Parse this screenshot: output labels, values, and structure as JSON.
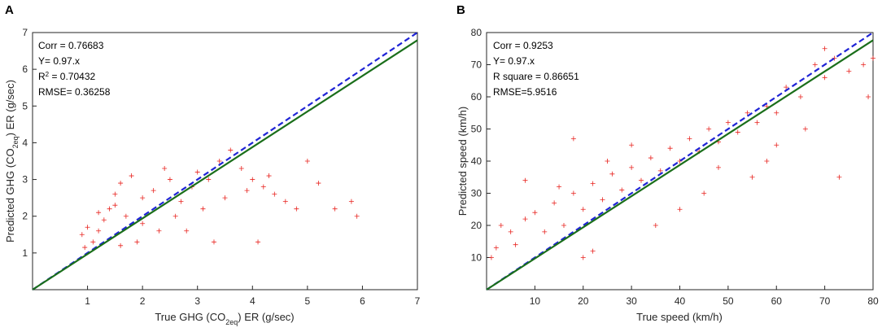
{
  "chart_data": [
    {
      "type": "scatter",
      "panel_label": "A",
      "xlabel": {
        "pre": "True GHG (CO",
        "sub": "2eq",
        "post": ") ER (g/sec)"
      },
      "ylabel": {
        "pre": "Predicted GHG (CO",
        "sub": "2eq",
        "post": ") ER (g/sec)"
      },
      "xlim": [
        0,
        7
      ],
      "ylim": [
        0,
        7
      ],
      "xticks": [
        1,
        2,
        3,
        4,
        5,
        6,
        7
      ],
      "yticks": [
        1,
        2,
        3,
        4,
        5,
        6,
        7
      ],
      "annotations": {
        "corr": "Corr = 0.76683",
        "fit": "Y= 0.97.x",
        "r2_pre": "R",
        "r2_sup": "2",
        "r2_post": " = 0.70432",
        "rmse": "RMSE= 0.36258"
      },
      "lines": [
        {
          "name": "identity",
          "style": "dashed",
          "color": "#1f24d6",
          "slope": 1.0
        },
        {
          "name": "fit",
          "style": "solid",
          "color": "#1a6e1a",
          "slope": 0.97
        }
      ],
      "scatter_color": "#e8231f",
      "points": [
        [
          0.95,
          1.15
        ],
        [
          1.1,
          1.3
        ],
        [
          1.2,
          1.6
        ],
        [
          1.3,
          1.9
        ],
        [
          1.4,
          2.2
        ],
        [
          1.5,
          2.6
        ],
        [
          1.6,
          2.9
        ],
        [
          1.8,
          3.1
        ],
        [
          2.0,
          2.5
        ],
        [
          2.2,
          2.7
        ],
        [
          2.4,
          3.3
        ],
        [
          2.5,
          3.0
        ],
        [
          2.7,
          2.4
        ],
        [
          2.9,
          2.8
        ],
        [
          3.0,
          3.2
        ],
        [
          3.2,
          3.0
        ],
        [
          3.4,
          3.5
        ],
        [
          3.6,
          3.8
        ],
        [
          3.8,
          3.3
        ],
        [
          4.0,
          3.0
        ],
        [
          4.2,
          2.8
        ],
        [
          4.4,
          2.6
        ],
        [
          4.6,
          2.4
        ],
        [
          4.8,
          2.2
        ],
        [
          5.0,
          3.5
        ],
        [
          5.2,
          2.9
        ],
        [
          5.5,
          2.2
        ],
        [
          5.8,
          2.4
        ],
        [
          5.9,
          2.0
        ],
        [
          4.1,
          1.3
        ],
        [
          3.3,
          1.3
        ],
        [
          2.8,
          1.6
        ],
        [
          2.3,
          1.6
        ],
        [
          1.9,
          1.3
        ],
        [
          1.6,
          1.2
        ],
        [
          1.0,
          1.7
        ],
        [
          0.9,
          1.5
        ],
        [
          1.2,
          2.1
        ],
        [
          1.5,
          2.3
        ],
        [
          1.7,
          2.0
        ],
        [
          2.0,
          1.8
        ],
        [
          2.6,
          2.0
        ],
        [
          3.1,
          2.2
        ],
        [
          3.5,
          2.5
        ],
        [
          3.9,
          2.7
        ],
        [
          4.3,
          3.1
        ]
      ]
    },
    {
      "type": "scatter",
      "panel_label": "B",
      "xlabel": "True speed (km/h)",
      "ylabel": "Predicted speed (km/h)",
      "xlim": [
        0,
        80
      ],
      "ylim": [
        0,
        80
      ],
      "xticks": [
        10,
        20,
        30,
        40,
        50,
        60,
        70,
        80
      ],
      "yticks": [
        10,
        20,
        30,
        40,
        50,
        60,
        70,
        80
      ],
      "annotations": {
        "corr": "Corr = 0.9253",
        "fit": "Y= 0.97.x",
        "r2": "R square = 0.86651",
        "rmse": "RMSE=5.9516"
      },
      "lines": [
        {
          "name": "identity",
          "style": "dashed",
          "color": "#1f24d6",
          "slope": 1.0
        },
        {
          "name": "fit",
          "style": "solid",
          "color": "#1a6e1a",
          "slope": 0.97
        }
      ],
      "scatter_color": "#e8231f",
      "points": [
        [
          1,
          10
        ],
        [
          2,
          13
        ],
        [
          3,
          20
        ],
        [
          5,
          18
        ],
        [
          6,
          14
        ],
        [
          8,
          22
        ],
        [
          10,
          24
        ],
        [
          12,
          18
        ],
        [
          14,
          27
        ],
        [
          16,
          20
        ],
        [
          18,
          30
        ],
        [
          20,
          25
        ],
        [
          22,
          33
        ],
        [
          24,
          28
        ],
        [
          26,
          36
        ],
        [
          28,
          31
        ],
        [
          30,
          38
        ],
        [
          32,
          34
        ],
        [
          34,
          41
        ],
        [
          36,
          37
        ],
        [
          38,
          44
        ],
        [
          40,
          40
        ],
        [
          42,
          47
        ],
        [
          44,
          43
        ],
        [
          46,
          50
        ],
        [
          48,
          46
        ],
        [
          50,
          52
        ],
        [
          52,
          49
        ],
        [
          54,
          55
        ],
        [
          56,
          52
        ],
        [
          58,
          57
        ],
        [
          60,
          55
        ],
        [
          62,
          63
        ],
        [
          65,
          60
        ],
        [
          68,
          70
        ],
        [
          70,
          66
        ],
        [
          72,
          72
        ],
        [
          75,
          68
        ],
        [
          78,
          70
        ],
        [
          79,
          60
        ],
        [
          80,
          72
        ],
        [
          55,
          35
        ],
        [
          58,
          40
        ],
        [
          60,
          45
        ],
        [
          48,
          38
        ],
        [
          30,
          45
        ],
        [
          25,
          40
        ],
        [
          15,
          32
        ],
        [
          8,
          34
        ],
        [
          18,
          47
        ],
        [
          20,
          10
        ],
        [
          22,
          12
        ],
        [
          35,
          20
        ],
        [
          40,
          25
        ],
        [
          45,
          30
        ],
        [
          66,
          50
        ],
        [
          70,
          75
        ],
        [
          73,
          35
        ]
      ]
    }
  ]
}
